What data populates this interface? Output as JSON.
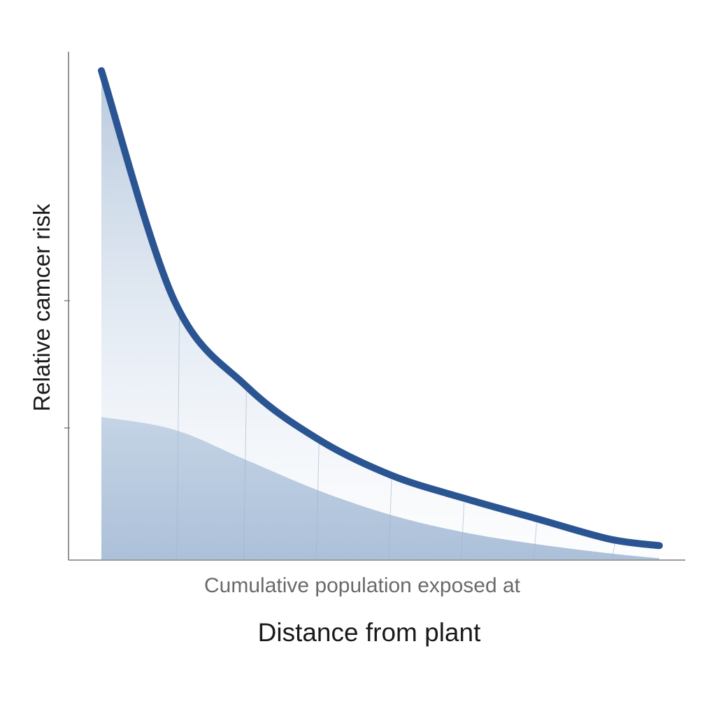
{
  "chart_data": {
    "type": "area",
    "ylabel": "Relative camcer risk",
    "xlabel_sub": "Cumulative population exposed at",
    "xlabel": "Distance from plant",
    "xlim": [
      0,
      1
    ],
    "ylim": [
      0,
      1
    ],
    "grid": false,
    "series": [
      {
        "x": [
          0,
          0.13,
          0.26,
          0.39,
          0.52,
          0.65,
          0.78,
          0.91,
          1.0
        ],
        "y": [
          0.96,
          0.51,
          0.34,
          0.235,
          0.165,
          0.12,
          0.08,
          0.04,
          0.027
        ],
        "color": "#2a5592"
      },
      {
        "x": [
          0,
          0.13,
          0.26,
          0.39,
          0.52,
          0.65,
          0.78,
          0.91,
          1.0
        ],
        "y": [
          0.28,
          0.255,
          0.195,
          0.135,
          0.087,
          0.053,
          0.03,
          0.012,
          0.002
        ],
        "color": "#a9bfd8"
      }
    ]
  }
}
